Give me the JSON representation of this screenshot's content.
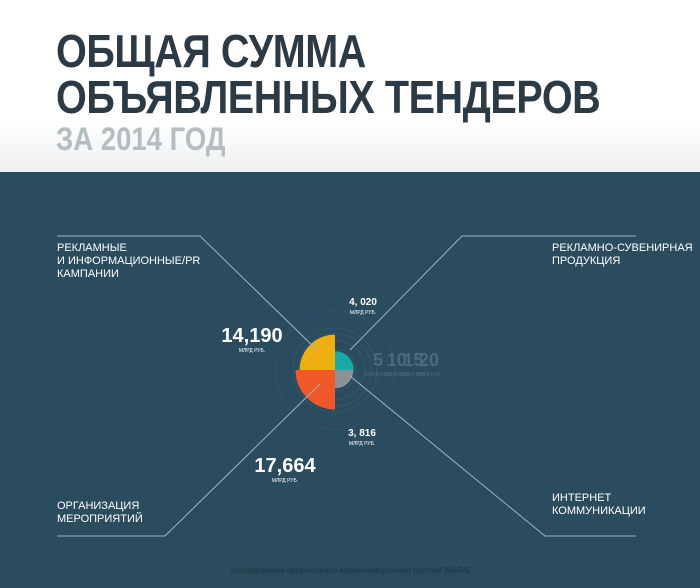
{
  "header": {
    "title_line1": "ОБЩАЯ СУММА",
    "title_line2": "ОБЪЯВЛЕННЫХ ТЕНДЕРОВ",
    "subtitle": "ЗА 2014 ГОД"
  },
  "labels": {
    "pr": "РЕКЛАМНЫЕ\nИ ИНФОРМАЦИОННЫЕ/PR\nКАМПАНИИ",
    "souvenir": "РЕКЛАМНО-СУВЕНИРНАЯ\nПРОДУКЦИЯ",
    "events": "ОРГАНИЗАЦИЯ\nМЕРОПРИЯТИЙ",
    "internet": "ИНТЕРНЕТ\nКОММУНИКАЦИИ"
  },
  "footer": "Исследование организовано коммуникационной группой iMARS",
  "colors": {
    "panel_bg": "#2b4b5e",
    "pr": "#eeb010",
    "events": "#f0582a",
    "souvenir": "#17aaa6",
    "internet": "#8a9296",
    "title": "#2c3a45",
    "subtitle": "#b5bdc1"
  },
  "chart_data": {
    "type": "pie",
    "unit": "МЛРД РУБ.",
    "series": [
      {
        "category": "РЕКЛАМНЫЕ И ИНФОРМАЦИОННЫЕ/PR КАМПАНИИ",
        "label": "14,190",
        "value": 14.19,
        "color": "#eeb010",
        "quadrant": "top-left"
      },
      {
        "category": "РЕКЛАМНО-СУВЕНИРНАЯ ПРОДУКЦИЯ",
        "label": "4, 020",
        "value": 4.02,
        "color": "#17aaa6",
        "quadrant": "top-right"
      },
      {
        "category": "ИНТЕРНЕТ КОММУНИКАЦИИ",
        "label": "3, 816",
        "value": 3.816,
        "color": "#8a9296",
        "quadrant": "bottom-right"
      },
      {
        "category": "ОРГАНИЗАЦИЯ МЕРОПРИЯТИЙ",
        "label": "17,664",
        "value": 17.664,
        "color": "#f0582a",
        "quadrant": "bottom-left"
      }
    ],
    "scale_ticks": [
      {
        "value": 5,
        "label": "5",
        "unit": "МЛРД РУБ."
      },
      {
        "value": 10,
        "label": "10",
        "unit": "МЛРД РУБ."
      },
      {
        "value": 15,
        "label": "15",
        "unit": "МЛРД РУБ."
      },
      {
        "value": 20,
        "label": "20",
        "unit": "МЛРД РУБ."
      }
    ]
  }
}
